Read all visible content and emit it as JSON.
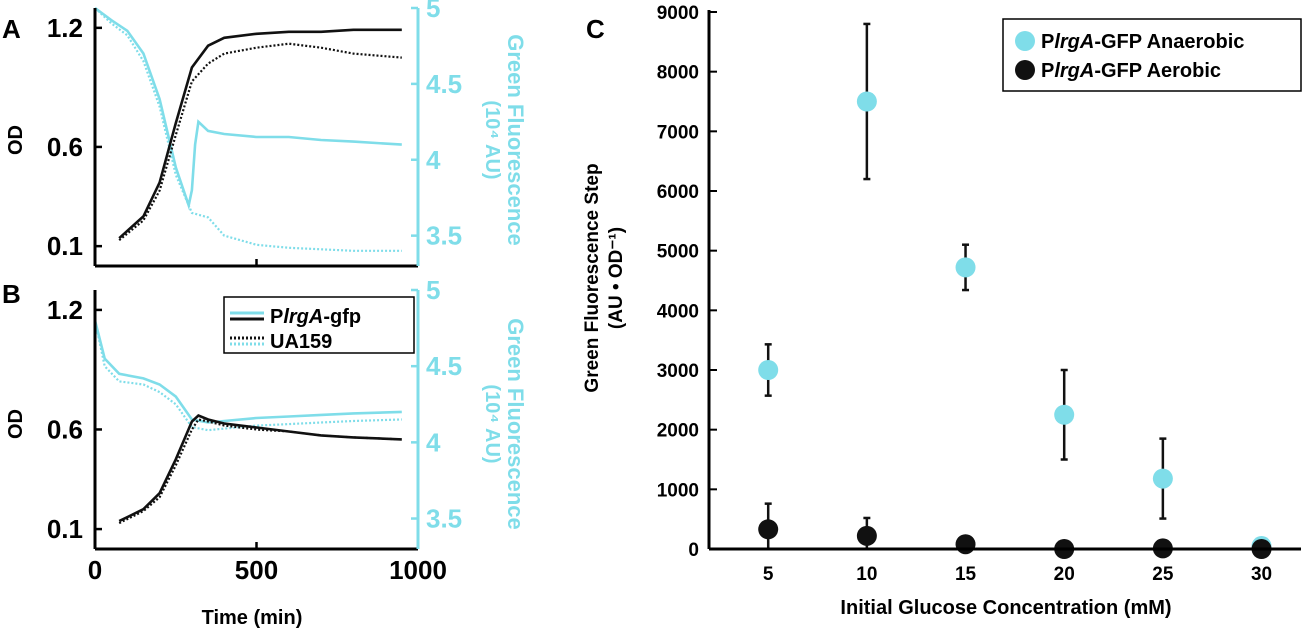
{
  "chart_data": [
    {
      "panel": "A",
      "type": "line",
      "panel_label": "A",
      "ylabel_left": "OD",
      "ylabel_right_line1": "Green Fluorescence",
      "ylabel_right_line2": "(10⁴ AU)",
      "xlim": [
        0,
        1000
      ],
      "ylim_left": [
        0,
        1.3
      ],
      "ylim_right": [
        3.3,
        5
      ],
      "yticks_left": [
        "1.2",
        "0.6",
        "0.1"
      ],
      "yticks_right": [
        "5",
        "4.5",
        "4",
        "3.5"
      ],
      "series": [
        {
          "name": "PlrgA-gfp OD",
          "axis": "left",
          "style": "solid",
          "color": "#111111",
          "x": [
            75,
            150,
            200,
            250,
            300,
            350,
            400,
            500,
            600,
            700,
            800,
            950
          ],
          "y": [
            0.14,
            0.25,
            0.42,
            0.72,
            1.0,
            1.11,
            1.15,
            1.17,
            1.18,
            1.18,
            1.19,
            1.19
          ]
        },
        {
          "name": "UA159 OD",
          "axis": "left",
          "style": "dotted",
          "color": "#111111",
          "x": [
            75,
            150,
            200,
            250,
            300,
            350,
            400,
            500,
            600,
            700,
            800,
            950
          ],
          "y": [
            0.13,
            0.23,
            0.38,
            0.66,
            0.93,
            1.02,
            1.07,
            1.1,
            1.12,
            1.1,
            1.07,
            1.05
          ]
        },
        {
          "name": "PlrgA-gfp fluorescence",
          "axis": "right",
          "style": "solid",
          "color": "#7fdde9",
          "x": [
            0,
            50,
            100,
            150,
            200,
            250,
            290,
            300,
            310,
            320,
            350,
            400,
            500,
            600,
            700,
            800,
            950
          ],
          "y": [
            5.0,
            4.92,
            4.85,
            4.7,
            4.4,
            3.95,
            3.7,
            3.8,
            4.1,
            4.25,
            4.19,
            4.17,
            4.15,
            4.15,
            4.13,
            4.12,
            4.1
          ]
        },
        {
          "name": "UA159 fluorescence",
          "axis": "right",
          "style": "dotted",
          "color": "#7fdde9",
          "x": [
            0,
            50,
            100,
            150,
            200,
            250,
            300,
            350,
            400,
            500,
            600,
            700,
            800,
            950
          ],
          "y": [
            5.0,
            4.9,
            4.82,
            4.65,
            4.35,
            3.9,
            3.65,
            3.62,
            3.5,
            3.44,
            3.42,
            3.41,
            3.4,
            3.4
          ]
        }
      ]
    },
    {
      "panel": "B",
      "type": "line",
      "panel_label": "B",
      "xlabel": "Time (min)",
      "ylabel_left": "OD",
      "ylabel_right_line1": "Green Fluorescence",
      "ylabel_right_line2": "(10⁴ AU)",
      "xlim": [
        0,
        1000
      ],
      "ylim_left": [
        0,
        1.3
      ],
      "ylim_right": [
        3.3,
        5
      ],
      "xticks": [
        "0",
        "500",
        "1000"
      ],
      "yticks_left": [
        "1.2",
        "0.6",
        "0.1"
      ],
      "yticks_right": [
        "5",
        "4.5",
        "4",
        "3.5"
      ],
      "legend": {
        "position": "top-right",
        "entries": [
          {
            "prefix": "P",
            "italic": "lrgA",
            "suffix": "-gfp",
            "style": "solid"
          },
          {
            "prefix": "UA159",
            "italic": "",
            "suffix": "",
            "style": "dotted"
          }
        ]
      },
      "series": [
        {
          "name": "PlrgA-gfp OD",
          "axis": "left",
          "style": "solid",
          "color": "#111111",
          "x": [
            75,
            150,
            200,
            250,
            300,
            320,
            350,
            400,
            500,
            600,
            700,
            800,
            950
          ],
          "y": [
            0.14,
            0.2,
            0.28,
            0.45,
            0.64,
            0.67,
            0.65,
            0.63,
            0.61,
            0.59,
            0.57,
            0.56,
            0.55
          ]
        },
        {
          "name": "UA159 OD",
          "axis": "left",
          "style": "dotted",
          "color": "#111111",
          "x": [
            75,
            150,
            200,
            250,
            300,
            320,
            350,
            400,
            500,
            600,
            700,
            800,
            950
          ],
          "y": [
            0.13,
            0.19,
            0.26,
            0.42,
            0.6,
            0.65,
            0.64,
            0.62,
            0.6,
            0.59,
            0.57,
            0.56,
            0.55
          ]
        },
        {
          "name": "PlrgA-gfp fluorescence",
          "axis": "right",
          "style": "solid",
          "color": "#7fdde9",
          "x": [
            0,
            30,
            75,
            150,
            200,
            250,
            300,
            350,
            400,
            500,
            600,
            700,
            800,
            950
          ],
          "y": [
            4.8,
            4.55,
            4.45,
            4.42,
            4.38,
            4.3,
            4.15,
            4.13,
            4.14,
            4.16,
            4.17,
            4.18,
            4.19,
            4.2
          ]
        },
        {
          "name": "UA159 fluorescence",
          "axis": "right",
          "style": "dotted",
          "color": "#7fdde9",
          "x": [
            0,
            30,
            75,
            150,
            200,
            250,
            300,
            350,
            400,
            500,
            600,
            700,
            800,
            950
          ],
          "y": [
            4.8,
            4.5,
            4.4,
            4.38,
            4.33,
            4.25,
            4.1,
            4.08,
            4.09,
            4.11,
            4.12,
            4.13,
            4.14,
            4.15
          ]
        }
      ]
    },
    {
      "panel": "C",
      "type": "scatter",
      "panel_label": "C",
      "xlabel": "Initial Glucose Concentration (mM)",
      "ylabel_line1": "Green Fluorescence Step",
      "ylabel_line2": "(AU • OD⁻¹)",
      "xlim": [
        2,
        32
      ],
      "ylim": [
        0,
        9000
      ],
      "xticks": [
        "5",
        "10",
        "15",
        "20",
        "25",
        "30"
      ],
      "yticks": [
        "0",
        "1000",
        "2000",
        "3000",
        "4000",
        "5000",
        "6000",
        "7000",
        "8000",
        "9000"
      ],
      "legend": {
        "position": "top-right",
        "entries": [
          {
            "prefix": "P",
            "italic": "lrgA",
            "suffix": "-GFP Anaerobic",
            "color": "#7fdde9"
          },
          {
            "prefix": "P",
            "italic": "lrgA",
            "suffix": "-GFP Aerobic",
            "color": "#111111"
          }
        ]
      },
      "series": [
        {
          "name": "PlrgA-GFP Anaerobic",
          "color": "#7fdde9",
          "x": [
            5,
            10,
            15,
            20,
            25,
            30
          ],
          "y": [
            3000,
            7500,
            4720,
            2250,
            1180,
            50
          ],
          "err": [
            430,
            1300,
            380,
            750,
            670,
            0
          ]
        },
        {
          "name": "PlrgA-GFP Aerobic",
          "color": "#111111",
          "x": [
            5,
            10,
            15,
            20,
            25,
            30
          ],
          "y": [
            330,
            220,
            80,
            0,
            10,
            0
          ],
          "err": [
            430,
            300,
            0,
            0,
            0,
            0
          ]
        }
      ]
    }
  ]
}
